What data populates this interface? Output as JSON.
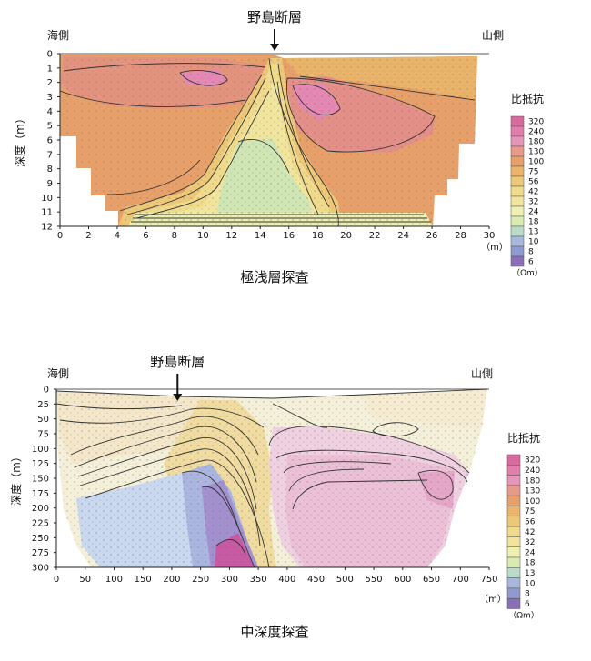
{
  "chart_data": [
    {
      "type": "heatmap",
      "title": "極浅層探査",
      "fault_label": "野島断層",
      "left_label": "海側",
      "right_label": "山側",
      "ylabel": "深度（m）",
      "x_unit": "（m）",
      "xlim": [
        0,
        30
      ],
      "ylim": [
        0,
        12
      ],
      "x_ticks": [
        "0",
        "2",
        "4",
        "6",
        "8",
        "10",
        "12",
        "14",
        "16",
        "18",
        "20",
        "22",
        "24",
        "26",
        "28",
        "30"
      ],
      "y_ticks": [
        "0",
        "1",
        "2",
        "3",
        "4",
        "5",
        "6",
        "7",
        "8",
        "9",
        "10",
        "11",
        "12"
      ],
      "fault_x": 15,
      "legend_title": "比抵抗",
      "legend_unit": "（Ωm）",
      "legend_levels": [
        "320",
        "240",
        "180",
        "130",
        "100",
        "75",
        "56",
        "42",
        "32",
        "24",
        "18",
        "13",
        "10",
        "8",
        "6"
      ]
    },
    {
      "type": "heatmap",
      "title": "中深度探査",
      "fault_label": "野島断層",
      "left_label": "海側",
      "right_label": "山側",
      "ylabel": "深度（m）",
      "x_unit": "（m）",
      "xlim": [
        0,
        750
      ],
      "ylim": [
        0,
        300
      ],
      "x_ticks": [
        "0",
        "50",
        "100",
        "150",
        "200",
        "250",
        "300",
        "350",
        "400",
        "450",
        "500",
        "550",
        "600",
        "650",
        "700",
        "750"
      ],
      "y_ticks": [
        "0",
        "25",
        "50",
        "75",
        "100",
        "125",
        "150",
        "175",
        "200",
        "225",
        "250",
        "275",
        "300"
      ],
      "fault_x": 210,
      "legend_title": "比抵抗",
      "legend_unit": "（Ωm）",
      "legend_levels": [
        "320",
        "240",
        "180",
        "130",
        "100",
        "75",
        "56",
        "42",
        "32",
        "24",
        "18",
        "13",
        "10",
        "8",
        "6"
      ]
    }
  ],
  "legend_colors": [
    "#d96a9e",
    "#e07fab",
    "#e596b8",
    "#e89a8a",
    "#e7a06a",
    "#eab46a",
    "#edc878",
    "#f0da8c",
    "#f1e59e",
    "#eef0b0",
    "#d8ebb0",
    "#b9dcc8",
    "#a7b8dc",
    "#8f9ad2",
    "#8a6fb8"
  ]
}
